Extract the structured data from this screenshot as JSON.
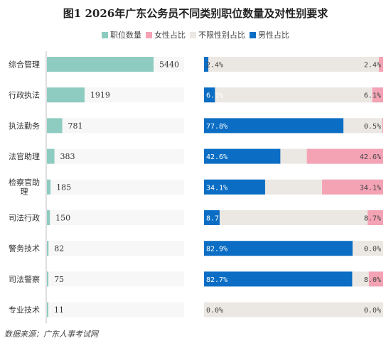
{
  "title": "图1  2026年广东公务员不同类别职位数量及对性别要求",
  "legend": [
    {
      "label": "职位数量",
      "color": "#8ecbc0"
    },
    {
      "label": "女性占比",
      "color": "#f4a3b5"
    },
    {
      "label": "不限性别占比",
      "color": "#ebe7e2"
    },
    {
      "label": "男性占比",
      "color": "#0b6ec4"
    }
  ],
  "source": "数据来源：广东人事考试网",
  "chart_data": {
    "type": "bar",
    "categories": [
      "综合管理",
      "行政执法",
      "执法勤务",
      "法官助理",
      "检察官助理",
      "司法行政",
      "警务技术",
      "司法警察",
      "专业技术"
    ],
    "series": [
      {
        "name": "职位数量",
        "values": [
          5440,
          1919,
          781,
          383,
          185,
          150,
          82,
          75,
          11
        ]
      },
      {
        "name": "男性占比",
        "values": [
          2.4,
          6.1,
          77.8,
          42.6,
          34.1,
          8.7,
          82.9,
          82.7,
          0.0
        ]
      },
      {
        "name": "女性占比",
        "values": [
          2.4,
          6.1,
          0.5,
          42.6,
          34.1,
          8.7,
          0.0,
          8.0,
          0.0
        ]
      }
    ],
    "male_labels": [
      "2.4%",
      "6.1%",
      "77.8%",
      "42.6%",
      "34.1%",
      "8.7",
      "82.9%",
      "82.7%",
      "0.0%"
    ],
    "female_labels": [
      "2.4%",
      "6.1%",
      "0.5%",
      "42.6%",
      "34.1%",
      "8.7%",
      "0.0%",
      "8.0%",
      "0.0%"
    ],
    "colors": {
      "count": "#8ecbc0",
      "male": "#0b6ec4",
      "female": "#f4a3b5",
      "unlimited": "#ebe7e2",
      "track": "#f7f7f7",
      "axis": "#bdbdbd"
    }
  }
}
